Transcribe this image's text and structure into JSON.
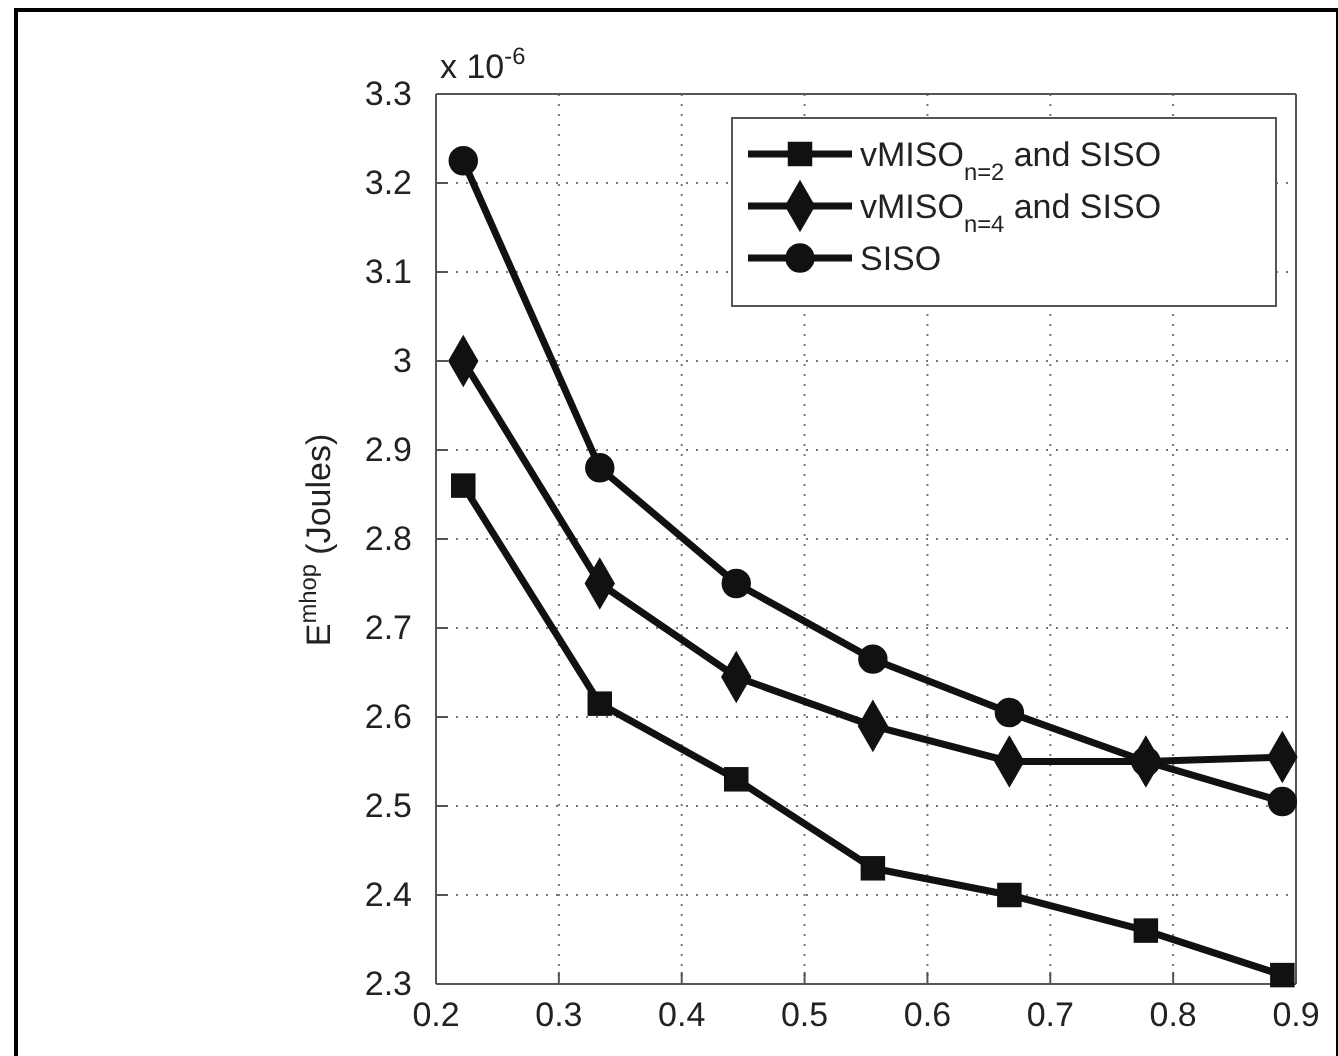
{
  "chart_data": {
    "type": "line",
    "xlabel": null,
    "ylabel": "E$^{mhop}$ (Joules)",
    "annotations": [
      "x 10$^{-6}$"
    ],
    "x": [
      0.2222,
      0.3333,
      0.4444,
      0.5556,
      0.6667,
      0.7778,
      0.8889
    ],
    "series": [
      {
        "name": "vMISO$_{n=2}$ and SISO",
        "color": "#111111",
        "marker": "square",
        "values": [
          2.86,
          2.615,
          2.53,
          2.43,
          2.4,
          2.36,
          2.31
        ]
      },
      {
        "name": "vMISO$_{n=4}$ and SISO",
        "color": "#111111",
        "marker": "diamond",
        "values": [
          3.0,
          2.75,
          2.645,
          2.59,
          2.55,
          2.55,
          2.555
        ]
      },
      {
        "name": "SISO",
        "color": "#111111",
        "marker": "circle",
        "values": [
          3.225,
          2.88,
          2.75,
          2.665,
          2.605,
          2.55,
          2.505
        ]
      }
    ],
    "xlim": [
      0.2,
      0.9
    ],
    "xticks": [
      0.2,
      0.3,
      0.4,
      0.5,
      0.6,
      0.7,
      0.8,
      0.9
    ],
    "ylim": [
      2.3,
      3.3
    ],
    "yticks": [
      2.3,
      2.4,
      2.5,
      2.6,
      2.7,
      2.8,
      2.9,
      3,
      3.1,
      3.2,
      3.3
    ],
    "grid": true,
    "legend": "top right",
    "line_style": "solid"
  }
}
